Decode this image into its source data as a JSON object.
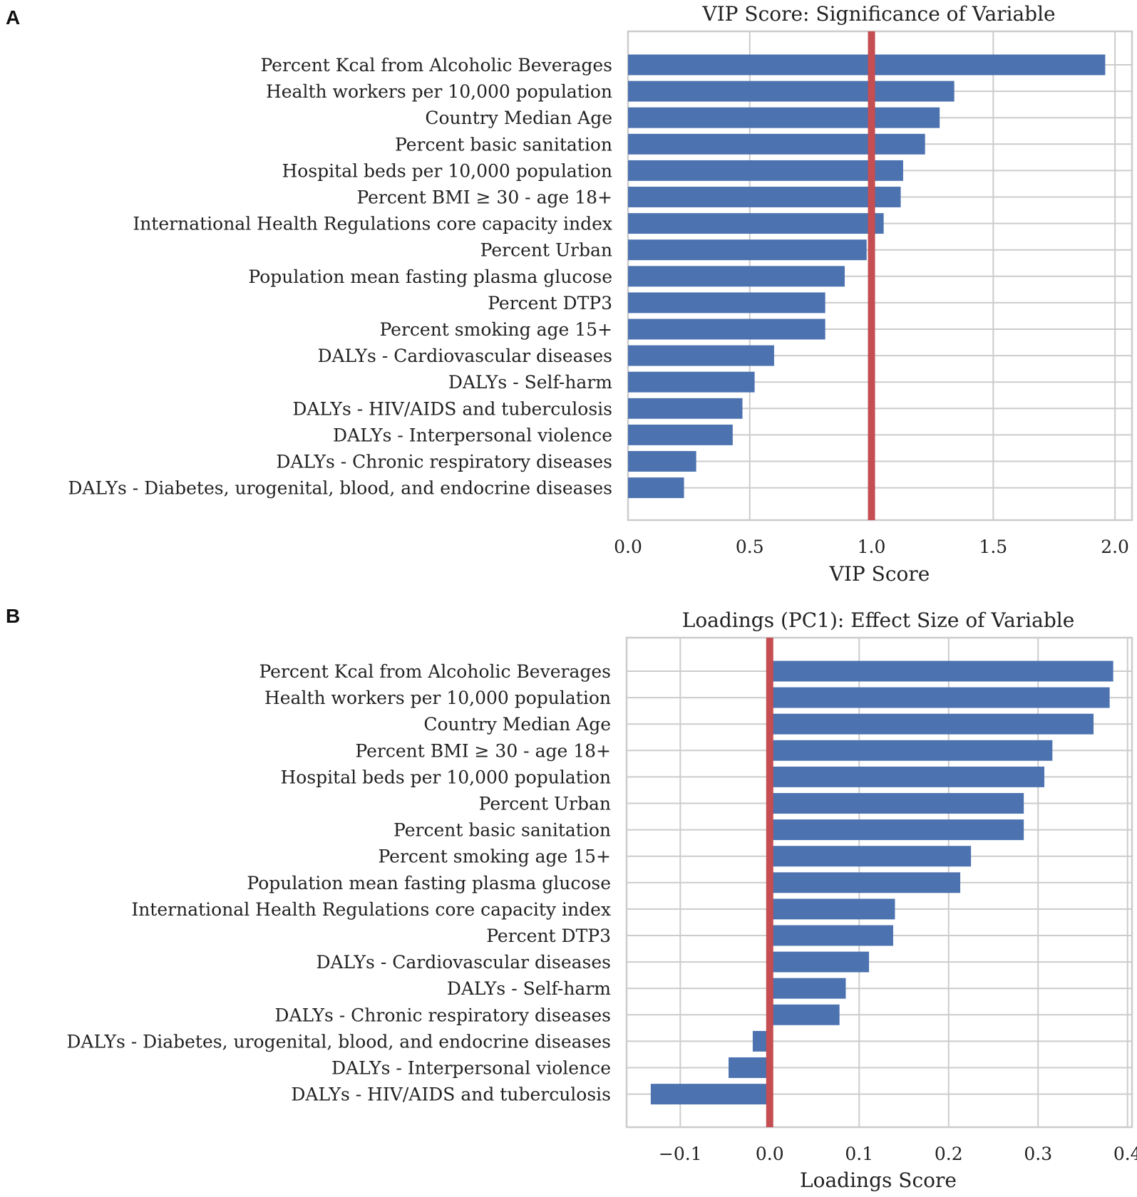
{
  "chart_data": [
    {
      "panel": "A",
      "type": "bar",
      "orientation": "horizontal",
      "title": "VIP Score: Significance of Variable",
      "xlabel": "VIP Score",
      "ylabel": "",
      "xlim": [
        0.0,
        2.07
      ],
      "xticks": [
        0.0,
        0.5,
        1.0,
        1.5,
        2.0
      ],
      "xtick_labels": [
        "0.0",
        "0.5",
        "1.0",
        "1.5",
        "2.0"
      ],
      "reference_line": 1.0,
      "grid": true,
      "bar_color": "#4C72B0",
      "line_color": "#C44E52",
      "categories": [
        "Percent Kcal from Alcoholic Beverages",
        "Health workers per 10,000 population",
        "Country Median Age",
        "Percent basic sanitation",
        "Hospital beds per 10,000 population",
        "Percent BMI ≥ 30 - age 18+",
        "International Health Regulations core capacity index",
        "Percent Urban",
        "Population mean fasting plasma glucose",
        "Percent DTP3",
        "Percent smoking age 15+",
        "DALYs - Cardiovascular diseases",
        "DALYs - Self-harm",
        "DALYs - HIV/AIDS and tuberculosis",
        "DALYs - Interpersonal violence",
        "DALYs - Chronic respiratory diseases",
        "DALYs - Diabetes, urogenital, blood, and endocrine diseases"
      ],
      "values": [
        1.96,
        1.34,
        1.28,
        1.22,
        1.13,
        1.12,
        1.05,
        0.98,
        0.89,
        0.81,
        0.81,
        0.6,
        0.52,
        0.47,
        0.43,
        0.28,
        0.23
      ]
    },
    {
      "panel": "B",
      "type": "bar",
      "orientation": "horizontal",
      "title": "Loadings (PC1): Effect Size of Variable",
      "xlabel": "Loadings Score",
      "ylabel": "",
      "xlim": [
        -0.16,
        0.405
      ],
      "xticks": [
        -0.1,
        0.0,
        0.1,
        0.2,
        0.3,
        0.4
      ],
      "xtick_labels": [
        "−0.1",
        "0.0",
        "0.1",
        "0.2",
        "0.3",
        "0.4"
      ],
      "reference_line": 0.0,
      "grid": true,
      "bar_color": "#4C72B0",
      "line_color": "#C44E52",
      "categories": [
        "Percent Kcal from Alcoholic Beverages",
        "Health workers per 10,000 population",
        "Country Median Age",
        "Percent BMI ≥ 30 - age 18+",
        "Hospital beds per 10,000 population",
        "Percent Urban",
        "Percent basic sanitation",
        "Percent smoking age 15+",
        "Population mean fasting plasma glucose",
        "International Health Regulations core capacity index",
        "Percent DTP3",
        "DALYs - Cardiovascular diseases",
        "DALYs - Self-harm",
        "DALYs - Chronic respiratory diseases",
        "DALYs - Diabetes, urogenital, blood, and endocrine diseases",
        "DALYs - Interpersonal violence",
        "DALYs - HIV/AIDS and tuberculosis"
      ],
      "values": [
        0.384,
        0.38,
        0.362,
        0.316,
        0.307,
        0.284,
        0.284,
        0.225,
        0.213,
        0.14,
        0.138,
        0.111,
        0.085,
        0.078,
        -0.019,
        -0.046,
        -0.133
      ]
    }
  ]
}
